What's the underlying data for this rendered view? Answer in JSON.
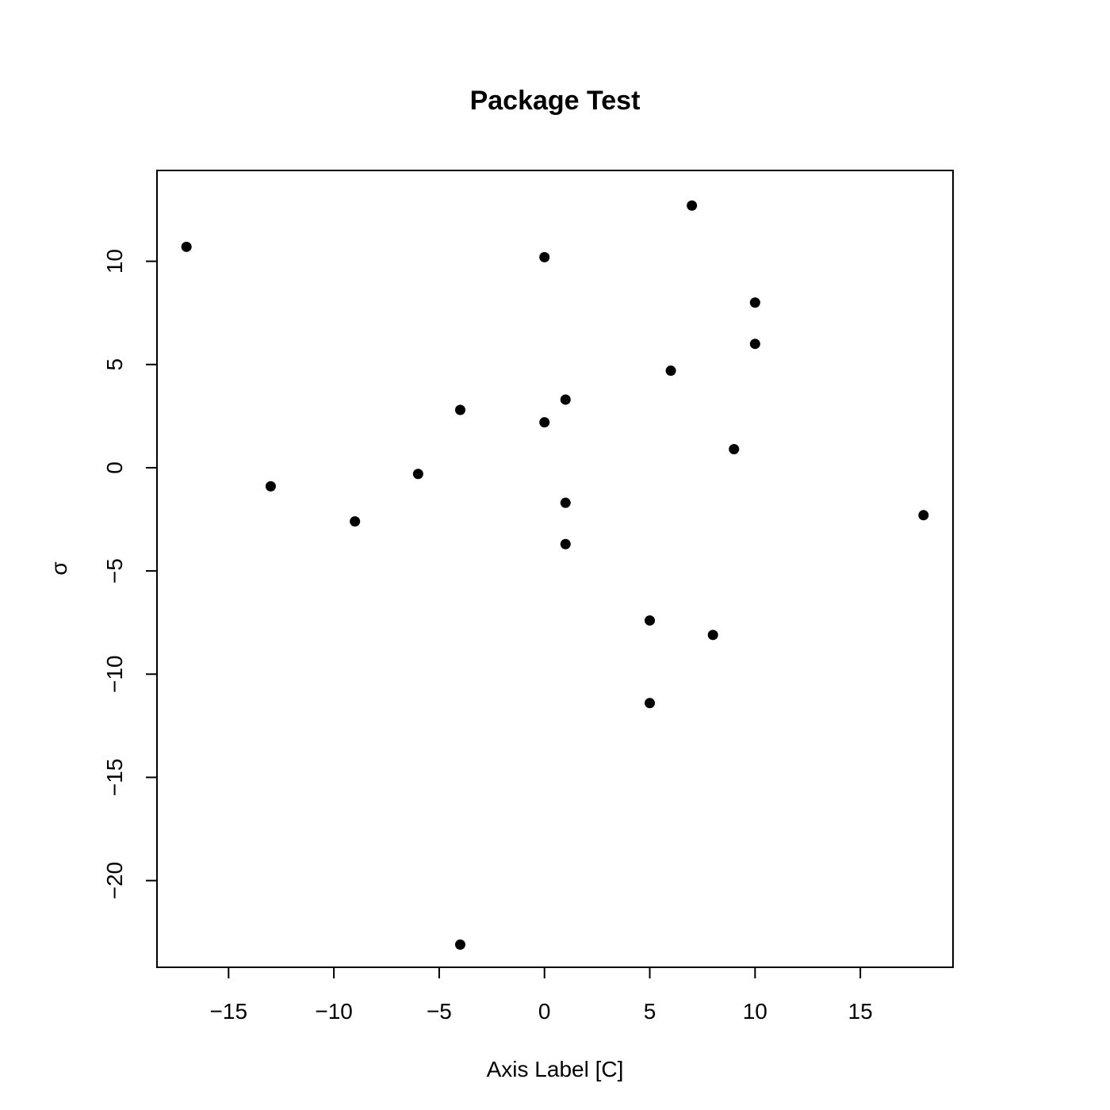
{
  "chart_data": {
    "type": "scatter",
    "title": "Package Test",
    "xlabel": "Axis Label [C]",
    "ylabel": "σ",
    "xlim": [
      -18.4,
      19.4
    ],
    "ylim": [
      -24.2,
      14.4
    ],
    "x_ticks": [
      -15,
      -10,
      -5,
      0,
      5,
      10,
      15
    ],
    "x_tick_labels": [
      "−15",
      "−10",
      "−5",
      "0",
      "5",
      "10",
      "15"
    ],
    "y_ticks": [
      -20,
      -15,
      -10,
      -5,
      0,
      5,
      10
    ],
    "y_tick_labels": [
      "−20",
      "−15",
      "−10",
      "−5",
      "0",
      "5",
      "10"
    ],
    "grid": false,
    "marker_color": "#000000",
    "points": [
      {
        "x": -17,
        "y": 10.7
      },
      {
        "x": -13,
        "y": -0.9
      },
      {
        "x": -9,
        "y": -2.6
      },
      {
        "x": -6,
        "y": -0.3
      },
      {
        "x": -4,
        "y": 2.8
      },
      {
        "x": -4,
        "y": -23.1
      },
      {
        "x": 0,
        "y": 10.2
      },
      {
        "x": 0,
        "y": 2.2
      },
      {
        "x": 1,
        "y": 3.3
      },
      {
        "x": 1,
        "y": -1.7
      },
      {
        "x": 1,
        "y": -3.7
      },
      {
        "x": 5,
        "y": -7.4
      },
      {
        "x": 5,
        "y": -11.4
      },
      {
        "x": 6,
        "y": 4.7
      },
      {
        "x": 7,
        "y": 12.7
      },
      {
        "x": 8,
        "y": -8.1
      },
      {
        "x": 9,
        "y": 0.9
      },
      {
        "x": 10,
        "y": 8.0
      },
      {
        "x": 10,
        "y": 6.0
      },
      {
        "x": 18,
        "y": -2.3
      }
    ]
  }
}
